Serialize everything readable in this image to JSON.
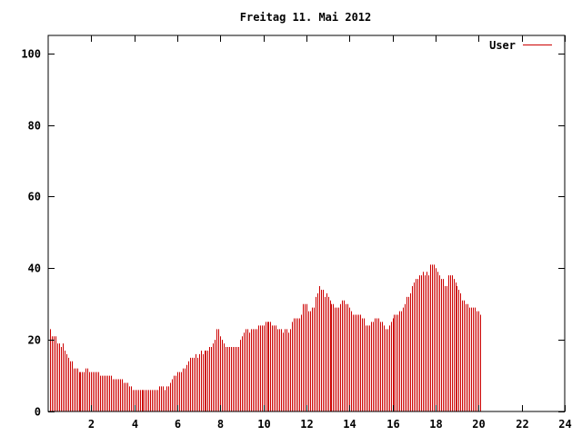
{
  "chart_data": {
    "type": "bar",
    "title": "Freitag 11. Mai 2012",
    "xlabel": "",
    "ylabel": "",
    "xlim": [
      0,
      24
    ],
    "ylim": [
      0,
      105
    ],
    "x_ticks": [
      2,
      4,
      6,
      8,
      10,
      12,
      14,
      16,
      18,
      20,
      22,
      24
    ],
    "x_tick_labels": [
      "2",
      "4",
      "6",
      "8",
      "10",
      "12",
      "14",
      "16",
      "18",
      "20",
      "22",
      "24"
    ],
    "y_ticks": [
      0,
      20,
      40,
      60,
      80,
      100
    ],
    "y_tick_labels": [
      "0",
      "20",
      "40",
      "60",
      "80",
      "100"
    ],
    "grid": false,
    "legend": {
      "position": "top-right",
      "entries": [
        "User"
      ]
    },
    "colors": {
      "series": "#cc0000",
      "axis": "#000000",
      "background": "#ffffff"
    },
    "series": [
      {
        "name": "User",
        "x_start": 0.0833,
        "x_step": 0.0833,
        "values": [
          23,
          21,
          21,
          21,
          19,
          19,
          18,
          19,
          17,
          16,
          15,
          14,
          14,
          12,
          12,
          12,
          11,
          11,
          11,
          11,
          12,
          12,
          11,
          11,
          11,
          11,
          11,
          11,
          10,
          10,
          10,
          10,
          10,
          10,
          10,
          9,
          9,
          9,
          9,
          9,
          9,
          8,
          8,
          8,
          7,
          7,
          6,
          6,
          6,
          6,
          6,
          6,
          6,
          6,
          6,
          6,
          6,
          6,
          6,
          6,
          6,
          7,
          7,
          7,
          6,
          7,
          7,
          8,
          9,
          10,
          10,
          11,
          11,
          11,
          12,
          12,
          13,
          14,
          15,
          15,
          15,
          16,
          15,
          16,
          17,
          16,
          17,
          17,
          17,
          18,
          18,
          19,
          20,
          23,
          23,
          21,
          20,
          19,
          18,
          18,
          18,
          18,
          18,
          18,
          18,
          18,
          20,
          21,
          22,
          23,
          23,
          22,
          23,
          23,
          23,
          23,
          24,
          24,
          24,
          24,
          25,
          25,
          25,
          25,
          24,
          24,
          24,
          23,
          23,
          23,
          22,
          23,
          23,
          22,
          23,
          25,
          26,
          26,
          26,
          26,
          27,
          30,
          30,
          30,
          28,
          28,
          29,
          29,
          32,
          33,
          35,
          34,
          34,
          32,
          33,
          32,
          31,
          30,
          30,
          29,
          29,
          29,
          30,
          31,
          31,
          30,
          30,
          29,
          28,
          27,
          27,
          27,
          27,
          27,
          26,
          26,
          24,
          24,
          24,
          25,
          25,
          26,
          26,
          26,
          25,
          25,
          24,
          23,
          23,
          24,
          25,
          26,
          27,
          27,
          27,
          28,
          28,
          29,
          30,
          32,
          32,
          33,
          35,
          36,
          37,
          37,
          38,
          38,
          39,
          38,
          39,
          38,
          41,
          41,
          41,
          40,
          39,
          38,
          37,
          37,
          35,
          35,
          38,
          38,
          38,
          37,
          36,
          35,
          34,
          33,
          31,
          31,
          30,
          30,
          29,
          29,
          29,
          29,
          28,
          28,
          27
        ]
      }
    ]
  }
}
